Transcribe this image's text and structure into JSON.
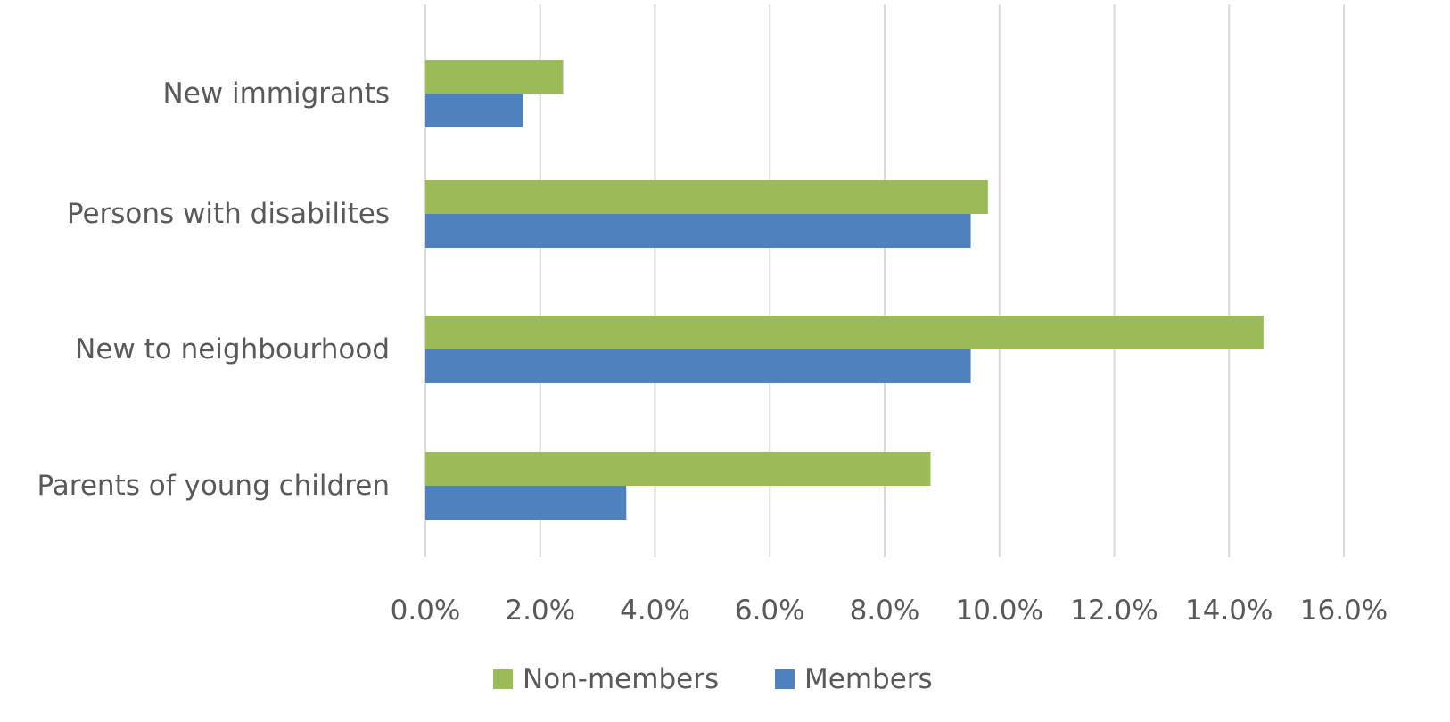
{
  "chart_data": {
    "type": "bar",
    "orientation": "horizontal",
    "title": "",
    "xlabel": "",
    "ylabel": "",
    "categories": [
      "New immigrants",
      "Persons with disabilites",
      "New to neighbourhood",
      "Parents of young children"
    ],
    "series": [
      {
        "name": "Non-members",
        "color": "#9bbb59",
        "values": [
          2.4,
          9.8,
          14.6,
          8.8
        ]
      },
      {
        "name": "Members",
        "color": "#4f81bd",
        "values": [
          1.7,
          9.5,
          9.5,
          3.5
        ]
      }
    ],
    "xlim": [
      0,
      16
    ],
    "xticks": [
      0,
      2,
      4,
      6,
      8,
      10,
      12,
      14,
      16
    ],
    "tick_labels": [
      "0.0%",
      "2.0%",
      "4.0%",
      "6.0%",
      "8.0%",
      "10.0%",
      "12.0%",
      "14.0%",
      "16.0%"
    ],
    "grid": "vertical",
    "legend": {
      "position": "bottom",
      "entries": [
        "Non-members",
        "Members"
      ]
    }
  }
}
